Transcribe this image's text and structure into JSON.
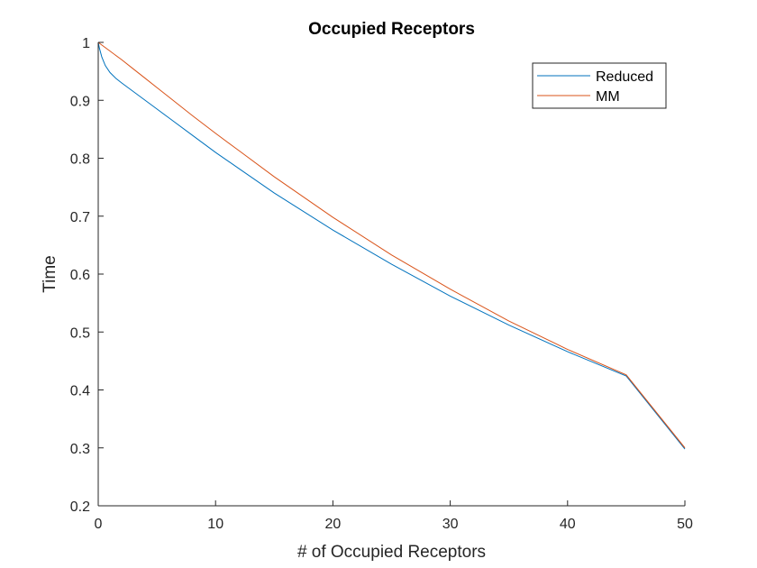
{
  "chart_data": {
    "type": "line",
    "title": "Occupied Receptors",
    "xlabel": "# of Occupied Receptors",
    "ylabel": "Time",
    "xlim": [
      0,
      50
    ],
    "ylim": [
      0.2,
      1
    ],
    "xticks": [
      "0",
      "10",
      "20",
      "30",
      "40",
      "50"
    ],
    "yticks": [
      "0.2",
      "0.3",
      "0.4",
      "0.5",
      "0.6",
      "0.7",
      "0.8",
      "0.9",
      "1"
    ],
    "grid": false,
    "legend_position": "top-right",
    "series": [
      {
        "name": "Reduced",
        "color": "#0072bd",
        "x": [
          0,
          0.1,
          0.3,
          0.6,
          1,
          1.5,
          2,
          3,
          4,
          5,
          6,
          8,
          10,
          12,
          15,
          20,
          25,
          30,
          35,
          40,
          45,
          50
        ],
        "y": [
          1.0,
          0.99,
          0.975,
          0.96,
          0.948,
          0.938,
          0.93,
          0.915,
          0.9,
          0.885,
          0.87,
          0.84,
          0.81,
          0.782,
          0.74,
          0.676,
          0.617,
          0.562,
          0.512,
          0.466,
          0.424,
          0.298
        ]
      },
      {
        "name": "MM",
        "color": "#d95319",
        "x": [
          0,
          1,
          2,
          3,
          4,
          5,
          6,
          8,
          10,
          12,
          15,
          20,
          25,
          30,
          35,
          40,
          45,
          50
        ],
        "y": [
          1.0,
          0.985,
          0.97,
          0.954,
          0.938,
          0.922,
          0.906,
          0.874,
          0.843,
          0.813,
          0.768,
          0.698,
          0.633,
          0.574,
          0.519,
          0.47,
          0.426,
          0.3
        ]
      }
    ]
  }
}
